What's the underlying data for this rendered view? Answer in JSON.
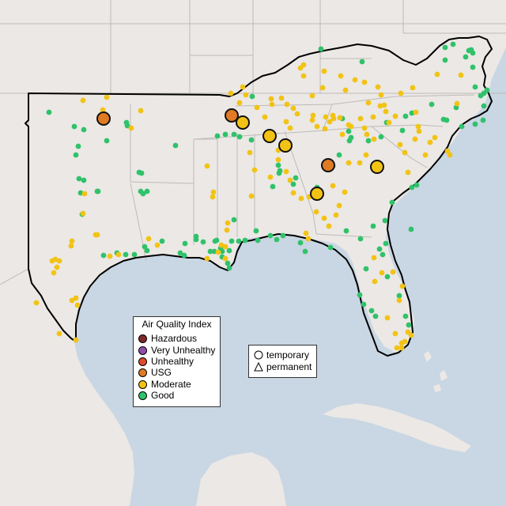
{
  "legend": {
    "title": "Air Quality Index",
    "categories": [
      {
        "label": "Hazardous",
        "color": "#7e2a2a"
      },
      {
        "label": "Very Unhealthy",
        "color": "#8e4fa8"
      },
      {
        "label": "Unhealthy",
        "color": "#e04a2a"
      },
      {
        "label": "USG",
        "color": "#e07a24"
      },
      {
        "label": "Moderate",
        "color": "#f2c314"
      },
      {
        "label": "Good",
        "color": "#2fc26a"
      }
    ]
  },
  "monitor_types": {
    "temporary": "temporary",
    "permanent": "permanent"
  },
  "colors": {
    "water": "#c9d6e3",
    "land": "#ebe8e5",
    "state_border": "#bdbab7",
    "region_outline": "#000000"
  }
}
